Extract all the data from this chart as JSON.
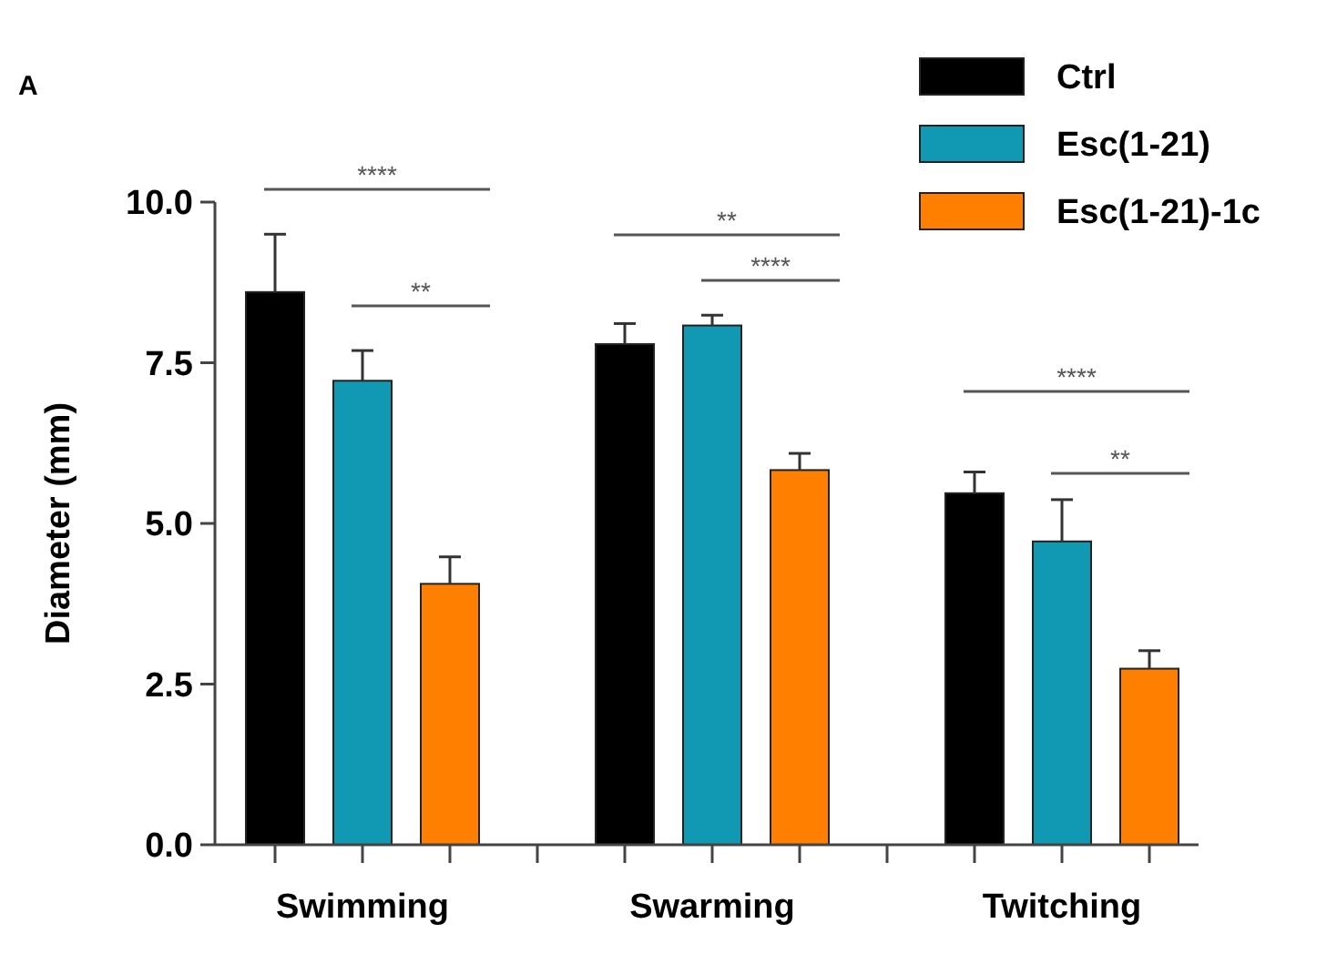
{
  "chart_data": {
    "type": "bar",
    "ylabel": "Diameter (mm)",
    "categories": [
      "Swimming",
      "Swarming",
      "Twitching"
    ],
    "series": [
      {
        "name": "Ctrl",
        "color": "#000000",
        "values": [
          8.6,
          7.79,
          5.47
        ],
        "errors": [
          0.9,
          0.32,
          0.33
        ]
      },
      {
        "name": "Esc(1-21)",
        "color": "#1199b4",
        "values": [
          7.22,
          8.08,
          4.72
        ],
        "errors": [
          0.47,
          0.16,
          0.65
        ]
      },
      {
        "name": "Esc(1-21)-1c",
        "color": "#ff8000",
        "values": [
          4.06,
          5.83,
          2.74
        ],
        "errors": [
          0.42,
          0.26,
          0.28
        ]
      }
    ],
    "ylim": [
      0,
      10
    ],
    "yticks": [
      {
        "value": 0,
        "label": "0.0"
      },
      {
        "value": 2.5,
        "label": "2.5"
      },
      {
        "value": 5,
        "label": "5.0"
      },
      {
        "value": 7.5,
        "label": "7.5"
      },
      {
        "value": 10,
        "label": "10.0"
      }
    ],
    "legend": "top right",
    "annotations": [
      "A",
      "****",
      "**",
      "**",
      "****",
      "****",
      "**"
    ]
  }
}
